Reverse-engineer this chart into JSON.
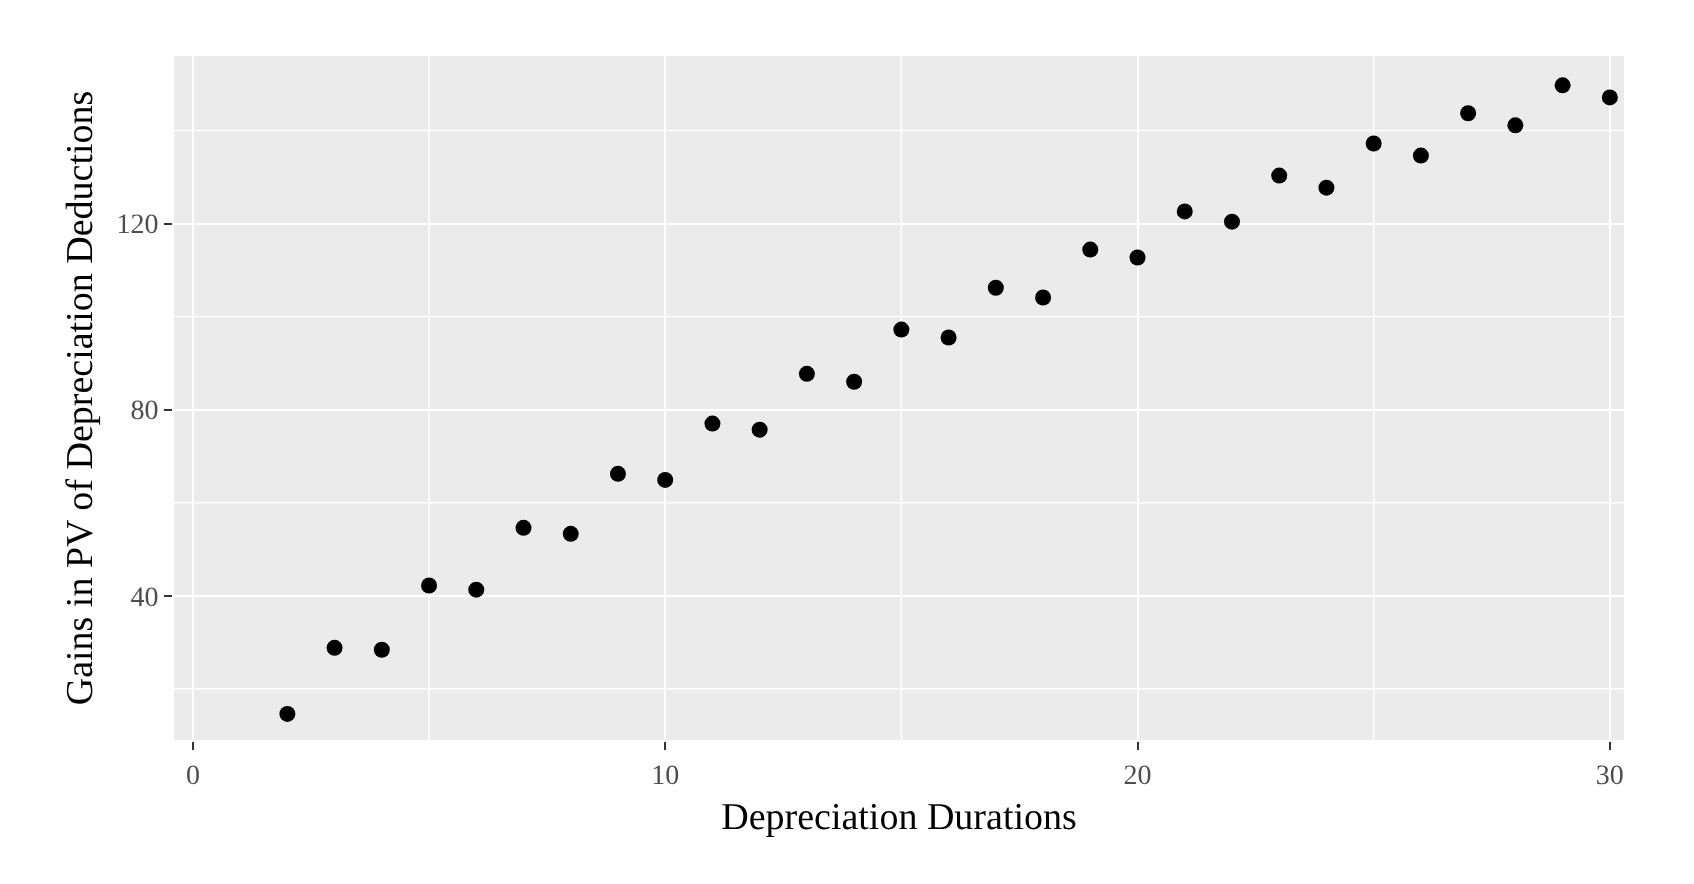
{
  "chart_data": {
    "type": "scatter",
    "xlabel": "Depreciation Durations",
    "ylabel": "Gains in PV of Depreciation Deductions",
    "x": [
      2,
      3,
      4,
      5,
      6,
      7,
      8,
      9,
      10,
      11,
      12,
      13,
      14,
      15,
      16,
      17,
      18,
      19,
      20,
      21,
      22,
      23,
      24,
      25,
      26,
      27,
      28,
      29,
      30
    ],
    "series": [
      {
        "color": "#000000",
        "values": [
          14.6,
          28.8,
          28.4,
          42.2,
          41.3,
          54.6,
          53.3,
          66.2,
          64.9,
          77.0,
          75.7,
          87.7,
          86.0,
          97.2,
          95.5,
          106.2,
          104.1,
          114.4,
          112.7,
          122.6,
          120.4,
          130.3,
          127.7,
          137.2,
          134.6,
          143.7,
          141.1,
          149.7,
          147.1
        ]
      }
    ],
    "xlim": [
      -0.4,
      30.3
    ],
    "ylim": [
      9,
      156
    ],
    "xticks": [
      0,
      {
        "value": 5,
        "label": null
      },
      10,
      {
        "value": 15,
        "label": null
      },
      20,
      {
        "value": 25,
        "label": null
      },
      30
    ],
    "yticks": [
      {
        "value": 20,
        "label": null
      },
      40,
      {
        "value": 60,
        "label": null
      },
      80,
      {
        "value": 100,
        "label": null
      },
      120,
      {
        "value": 140,
        "label": null
      }
    ],
    "grid": true,
    "marker": "circle"
  }
}
